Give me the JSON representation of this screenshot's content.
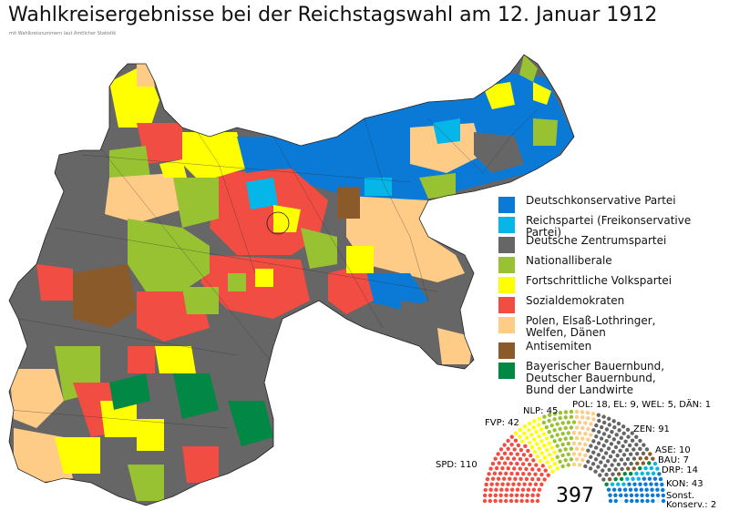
{
  "title": "Wahlkreisergebnisse bei der Reichstagswahl am 12. Januar 1912",
  "subtitle": "mit Wahlkreisnummern laut Amtlicher Statistik",
  "colors": {
    "dk": "#0b7ad6",
    "rp": "#06b6e8",
    "zen": "#666666",
    "nl": "#99c232",
    "fvp": "#ffff00",
    "spd": "#f24d42",
    "pol": "#ffcc88",
    "ase": "#8b5a2b",
    "bau": "#008844"
  },
  "legend": [
    {
      "key": "dk",
      "label": "Deutschkonservative Partei"
    },
    {
      "key": "rp",
      "label": "Reichspartei (Freikonservative Partei)"
    },
    {
      "key": "zen",
      "label": "Deutsche Zentrumspartei"
    },
    {
      "key": "nl",
      "label": "Nationalliberale"
    },
    {
      "key": "fvp",
      "label": "Fortschrittliche Volkspartei"
    },
    {
      "key": "spd",
      "label": "Sozialdemokraten"
    },
    {
      "key": "pol",
      "label": "Polen, Elsaß-Lothringer,",
      "label2": "Welfen, Dänen"
    },
    {
      "key": "ase",
      "label": "Antisemiten"
    },
    {
      "key": "bau",
      "label": "Bayerischer Bauernbund,",
      "label2": "Deutscher Bauernbund,",
      "label3": "Bund der Landwirte"
    }
  ],
  "parliament": {
    "total": "397",
    "labels": {
      "spd": "SPD: 110",
      "fvp": "FVP: 42",
      "nlp": "NLP: 45",
      "pol": "POL: 18, EL: 9, WEL: 5, DÄN: 1",
      "zen": "ZEN: 91",
      "ase": "ASE: 10",
      "bau": "BAU: 7",
      "drp": "DRP: 14",
      "kon": "KON: 43",
      "sonst1": "Sonst.",
      "sonst2": "Konserv.: 2"
    },
    "seats": [
      {
        "party": "SPD",
        "count": 110,
        "color": "#f24d42"
      },
      {
        "party": "FVP",
        "count": 42,
        "color": "#ffff00"
      },
      {
        "party": "NLP",
        "count": 45,
        "color": "#99c232"
      },
      {
        "party": "POL/EL/WEL/DÄN",
        "count": 33,
        "color": "#ffcc88"
      },
      {
        "party": "ZEN",
        "count": 91,
        "color": "#666666"
      },
      {
        "party": "ASE",
        "count": 10,
        "color": "#8b5a2b"
      },
      {
        "party": "BAU",
        "count": 7,
        "color": "#008844"
      },
      {
        "party": "DRP",
        "count": 14,
        "color": "#06b6e8"
      },
      {
        "party": "KON",
        "count": 43,
        "color": "#0b7ad6"
      },
      {
        "party": "Sonst. Konserv.",
        "count": 2,
        "color": "#e8f4fc"
      }
    ]
  }
}
